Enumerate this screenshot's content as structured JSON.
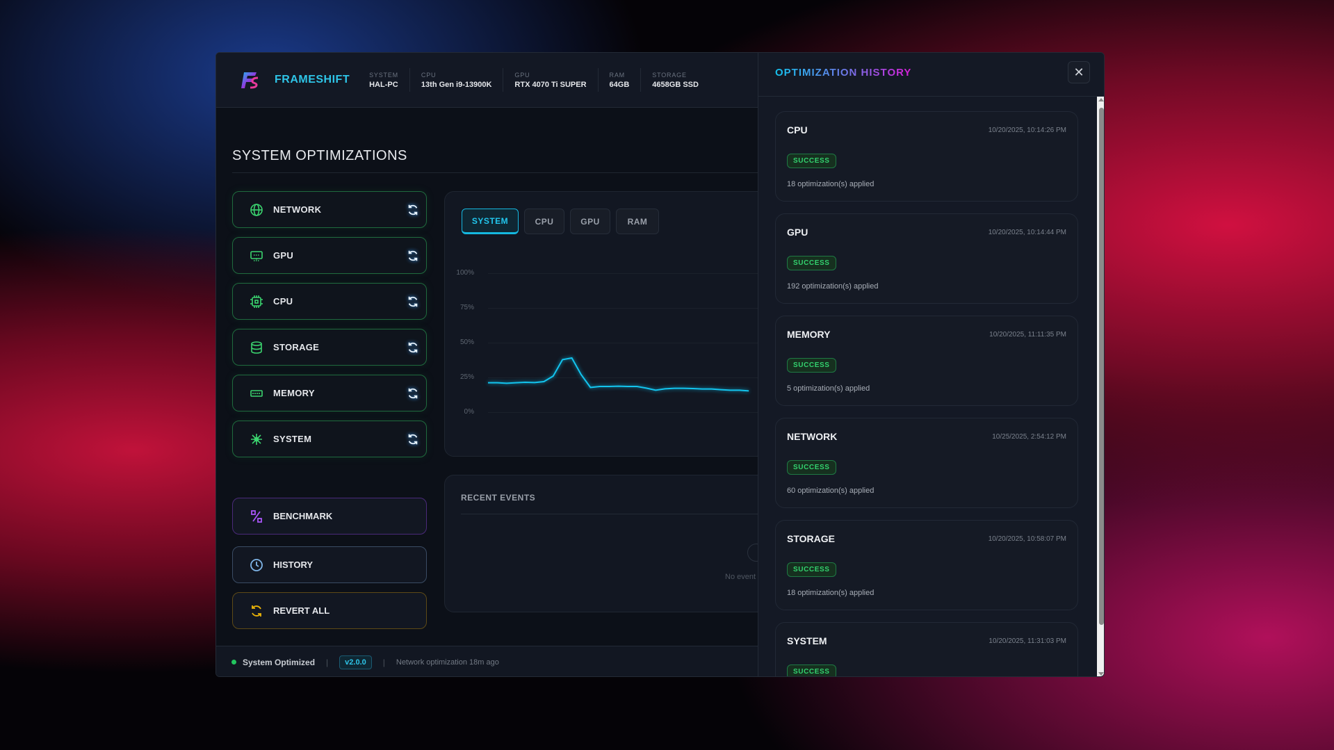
{
  "app": {
    "name": "FRAMESHIFT"
  },
  "specs": [
    {
      "k": "SYSTEM",
      "v": "HAL-PC"
    },
    {
      "k": "CPU",
      "v": "13th Gen i9-13900K"
    },
    {
      "k": "GPU",
      "v": "RTX 4070 Ti SUPER"
    },
    {
      "k": "RAM",
      "v": "64GB"
    },
    {
      "k": "STORAGE",
      "v": "4658GB SSD"
    }
  ],
  "section_title": "SYSTEM OPTIMIZATIONS",
  "optimizations": [
    {
      "label": "NETWORK",
      "icon": "globe-icon"
    },
    {
      "label": "GPU",
      "icon": "monitor-icon"
    },
    {
      "label": "CPU",
      "icon": "chip-icon"
    },
    {
      "label": "STORAGE",
      "icon": "database-icon"
    },
    {
      "label": "MEMORY",
      "icon": "ram-icon"
    },
    {
      "label": "SYSTEM",
      "icon": "spark-icon"
    }
  ],
  "actions": {
    "benchmark": "BENCHMARK",
    "history": "HISTORY",
    "revert": "REVERT ALL"
  },
  "colors": {
    "accent": "#15b8e0",
    "success": "#33d36f",
    "benchmark": "#a855f7",
    "history": "#7fb5e8",
    "revert": "#eab308"
  },
  "chart_tabs": [
    "SYSTEM",
    "CPU",
    "GPU",
    "RAM"
  ],
  "active_tab": "SYSTEM",
  "chart_data": {
    "type": "line",
    "ylim": [
      0,
      100
    ],
    "yticks": [
      "100%",
      "75%",
      "50%",
      "25%",
      "0%"
    ],
    "grid": true,
    "values": [
      21.2,
      21.2,
      20.8,
      21.2,
      21.5,
      21.3,
      22,
      26,
      37.8,
      39,
      27,
      17.8,
      18.5,
      18.5,
      18.7,
      18.5,
      18.5,
      17.3,
      15.8,
      16.8,
      17.2,
      17.2,
      17,
      16.7,
      16.7,
      16.2,
      15.8,
      15.8,
      15.3
    ]
  },
  "recent_events": {
    "title": "RECENT EVENTS",
    "empty": "No event"
  },
  "footer": {
    "status": "System Optimized",
    "version": "v2.0.0",
    "last": "Network optimization 18m ago",
    "sep": "|"
  },
  "history": {
    "title": "OPTIMIZATION HISTORY",
    "close": "✕",
    "items": [
      {
        "name": "CPU",
        "time": "10/20/2025, 10:14:26 PM",
        "status": "SUCCESS",
        "count": "18 optimization(s) applied"
      },
      {
        "name": "GPU",
        "time": "10/20/2025, 10:14:44 PM",
        "status": "SUCCESS",
        "count": "192 optimization(s) applied"
      },
      {
        "name": "MEMORY",
        "time": "10/20/2025, 11:11:35 PM",
        "status": "SUCCESS",
        "count": "5 optimization(s) applied"
      },
      {
        "name": "NETWORK",
        "time": "10/25/2025, 2:54:12 PM",
        "status": "SUCCESS",
        "count": "60 optimization(s) applied"
      },
      {
        "name": "STORAGE",
        "time": "10/20/2025, 10:58:07 PM",
        "status": "SUCCESS",
        "count": "18 optimization(s) applied"
      },
      {
        "name": "SYSTEM",
        "time": "10/20/2025, 11:31:03 PM",
        "status": "SUCCESS",
        "count": ""
      }
    ]
  }
}
